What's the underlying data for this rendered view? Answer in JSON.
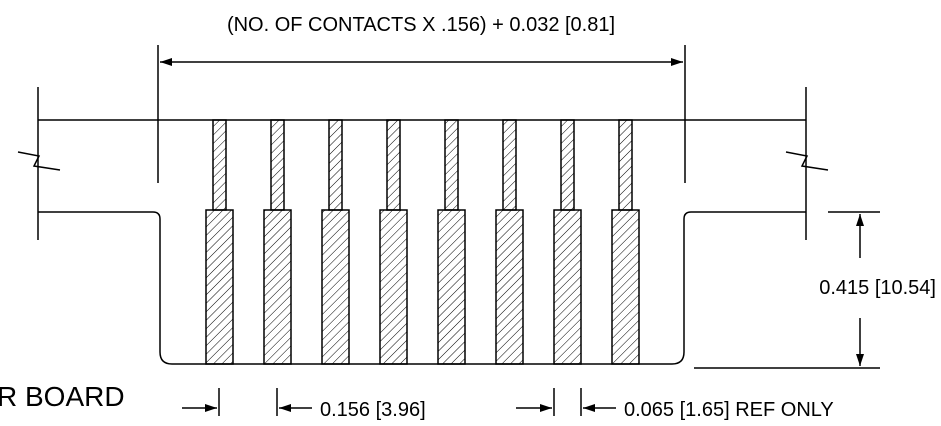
{
  "drawing": {
    "title": "",
    "overall_dim_label": "(NO. OF CONTACTS X .156) + 0.032 [0.81]",
    "height_dim_label": "0.415 [10.54]",
    "pitch_dim_label": "0.156 [3.96]",
    "contact_width_label": "0.065 [1.65] REF ONLY",
    "board_label": "R BOARD",
    "contact_count": 8,
    "line_color": "#000000",
    "fill_color": "#ffffff"
  }
}
